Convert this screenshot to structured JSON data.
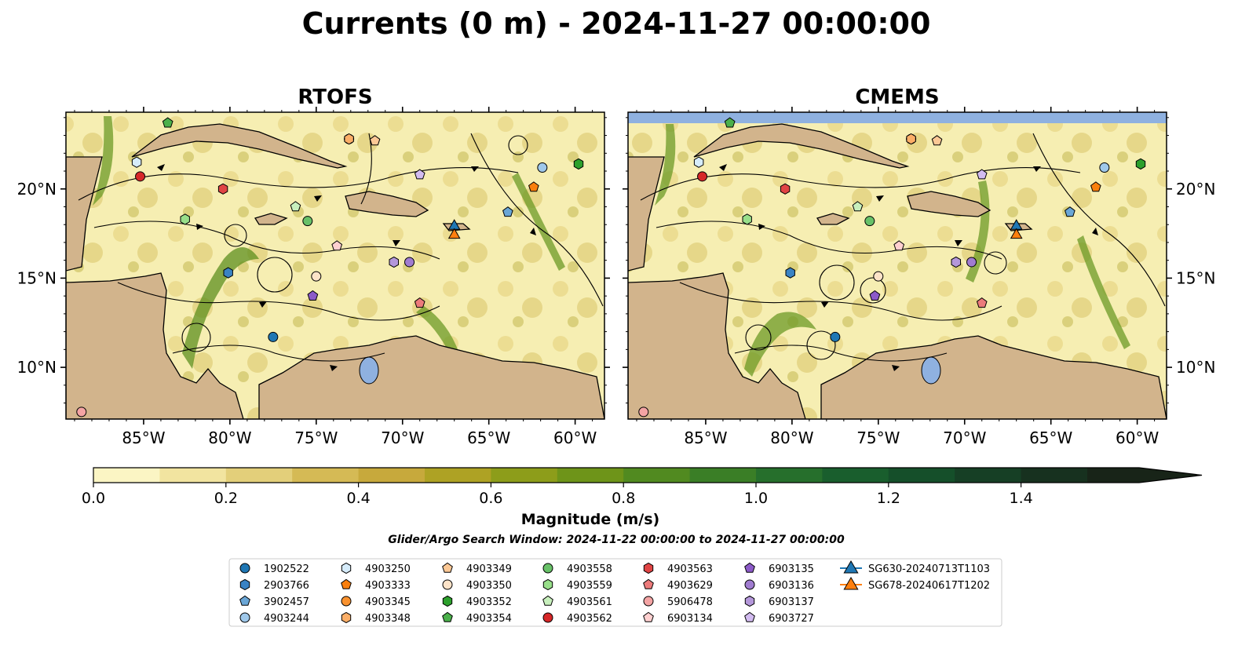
{
  "title": "Currents (0 m) - 2024-11-27 00:00:00",
  "panels": [
    {
      "title": "RTOFS"
    },
    {
      "title": "CMEMS"
    }
  ],
  "colorbar": {
    "label": "Magnitude (m/s)",
    "ticks": [
      "0.0",
      "0.2",
      "0.4",
      "0.6",
      "0.8",
      "1.0",
      "1.2",
      "1.4"
    ],
    "range": [
      0,
      1.6
    ],
    "step": 0.1,
    "colors": [
      "#fbf5c4",
      "#f2e4a0",
      "#e3cf7a",
      "#d5ba55",
      "#c7a93c",
      "#aea224",
      "#8d9d1a",
      "#6e9419",
      "#518a20",
      "#3a7e26",
      "#266f2c",
      "#195e2d",
      "#154f2a",
      "#163f25",
      "#17311f",
      "#182418"
    ]
  },
  "subtitle": "Glider/Argo Search Window: 2024-11-22 00:00:00 to 2024-11-27 00:00:00",
  "chart_data": {
    "type": "scatter",
    "x_axis": {
      "range": [
        -89.5,
        -58.3
      ],
      "ticks": [
        -85,
        -80,
        -75,
        -70,
        -65,
        -60
      ],
      "tick_labels": [
        "85°W",
        "80°W",
        "75°W",
        "70°W",
        "65°W",
        "60°W"
      ]
    },
    "y_axis": {
      "range": [
        7.1,
        24.3
      ],
      "ticks": [
        10,
        15,
        20
      ],
      "tick_labels": [
        "10°N",
        "15°N",
        "20°N"
      ]
    },
    "ocean_color": "#f6eeb2",
    "land_color": "#d2b48c",
    "series": [
      {
        "name": "1902522",
        "marker": "circle",
        "color": "#1f77b4",
        "lon": -77.5,
        "lat": 11.7
      },
      {
        "name": "2903766",
        "marker": "hexagon",
        "color": "#3a83c4",
        "lon": -80.1,
        "lat": 15.3
      },
      {
        "name": "3902457",
        "marker": "pentagon",
        "color": "#6aa6d6",
        "lon": -63.9,
        "lat": 18.7
      },
      {
        "name": "4903244",
        "marker": "circle",
        "color": "#9fc8ea",
        "lon": -61.9,
        "lat": 21.2
      },
      {
        "name": "4903250",
        "marker": "hexagon",
        "color": "#d6ecfb",
        "lon": -85.4,
        "lat": 21.5
      },
      {
        "name": "4903333",
        "marker": "pentagon",
        "color": "#f97f0e",
        "lon": -62.4,
        "lat": 20.1
      },
      {
        "name": "4903345",
        "marker": "circle",
        "color": "#f9922f",
        "lon": -73.1,
        "lat": 22.8
      },
      {
        "name": "4903348",
        "marker": "hexagon",
        "color": "#fbae67",
        "lon": -73.1,
        "lat": 22.8
      },
      {
        "name": "4903349",
        "marker": "pentagon",
        "color": "#fcc895",
        "lon": -71.6,
        "lat": 22.7
      },
      {
        "name": "4903350",
        "marker": "circle",
        "color": "#fde3c8",
        "lon": -75.0,
        "lat": 15.1
      },
      {
        "name": "4903352",
        "marker": "hexagon",
        "color": "#2ca02c",
        "lon": -59.8,
        "lat": 21.4
      },
      {
        "name": "4903354",
        "marker": "pentagon",
        "color": "#4bb04b",
        "lon": -83.6,
        "lat": 23.7
      },
      {
        "name": "4903558",
        "marker": "circle",
        "color": "#68c168",
        "lon": -75.5,
        "lat": 18.2
      },
      {
        "name": "4903559",
        "marker": "hexagon",
        "color": "#98df8a",
        "lon": -82.6,
        "lat": 18.3
      },
      {
        "name": "4903561",
        "marker": "pentagon",
        "color": "#c8f0bd",
        "lon": -76.2,
        "lat": 19.0
      },
      {
        "name": "4903562",
        "marker": "circle",
        "color": "#d62728",
        "lon": -85.2,
        "lat": 20.7
      },
      {
        "name": "4903563",
        "marker": "hexagon",
        "color": "#e04444",
        "lon": -80.4,
        "lat": 20.0
      },
      {
        "name": "4903629",
        "marker": "pentagon",
        "color": "#ec7b7b",
        "lon": -69.0,
        "lat": 13.6
      },
      {
        "name": "5906478",
        "marker": "circle",
        "color": "#f4a4a4",
        "lon": -88.6,
        "lat": 7.5
      },
      {
        "name": "6903134",
        "marker": "pentagon",
        "color": "#ffd0d0",
        "lon": -73.8,
        "lat": 16.8
      },
      {
        "name": "6903135",
        "marker": "pentagon",
        "color": "#8c5ac8",
        "lon": -75.2,
        "lat": 14.0
      },
      {
        "name": "6903136",
        "marker": "circle",
        "color": "#a07cd0",
        "lon": -69.6,
        "lat": 15.9
      },
      {
        "name": "6903137",
        "marker": "hexagon",
        "color": "#b497da",
        "lon": -70.5,
        "lat": 15.9
      },
      {
        "name": "6903727",
        "marker": "pentagon",
        "color": "#d2bbf0",
        "lon": -69.0,
        "lat": 20.8
      },
      {
        "name": "SG630-20240713T1103",
        "marker": "triangle",
        "color": "#1f77b4",
        "lon": -67.0,
        "lat": 18.0
      },
      {
        "name": "SG678-20240617T1202",
        "marker": "triangle",
        "color": "#ff7f0e",
        "lon": -67.0,
        "lat": 17.5
      }
    ]
  }
}
